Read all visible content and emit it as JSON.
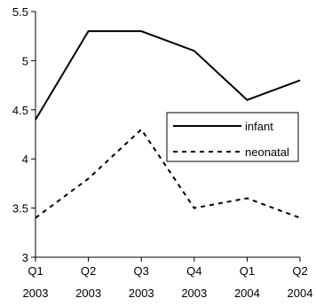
{
  "chart_data": {
    "type": "line",
    "title": "",
    "xlabel": "",
    "ylabel": "",
    "categories": [
      [
        "Q1",
        "2003"
      ],
      [
        "Q2",
        "2003"
      ],
      [
        "Q3",
        "2003"
      ],
      [
        "Q4",
        "2003"
      ],
      [
        "Q1",
        "2004"
      ],
      [
        "Q2",
        "2004"
      ]
    ],
    "ylim": [
      3,
      5.5
    ],
    "yticks": [
      "3",
      "3.5",
      "4",
      "4.5",
      "5",
      "5.5"
    ],
    "grid": false,
    "legend_position": "right",
    "series": [
      {
        "name": "infant",
        "line_style": "solid",
        "color": "#000000",
        "values": [
          4.4,
          5.3,
          5.3,
          5.1,
          4.6,
          4.8
        ]
      },
      {
        "name": "neonatal",
        "line_style": "dashed",
        "color": "#000000",
        "values": [
          3.4,
          3.8,
          4.3,
          3.5,
          3.6,
          3.4
        ]
      }
    ]
  }
}
